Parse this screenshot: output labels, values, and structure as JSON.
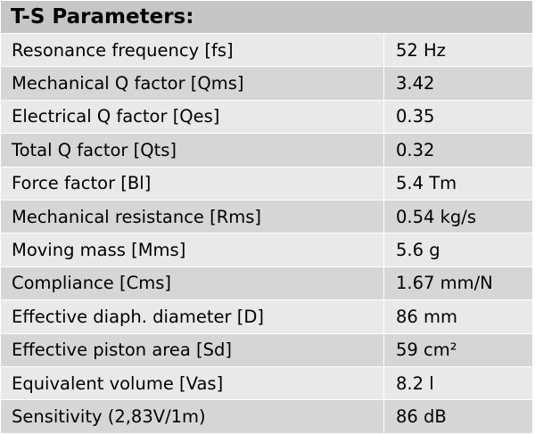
{
  "title": "T-S Parameters:",
  "rows": [
    {
      "label": "Resonance frequency [fs]",
      "value": "52 Hz"
    },
    {
      "label": "Mechanical Q factor [Qms]",
      "value": "3.42"
    },
    {
      "label": "Electrical Q factor [Qes]",
      "value": "0.35"
    },
    {
      "label": "Total Q factor [Qts]",
      "value": "0.32"
    },
    {
      "label": "Force factor [Bl]",
      "value": "5.4 Tm"
    },
    {
      "label": "Mechanical resistance [Rms]",
      "value": "0.54 kg/s"
    },
    {
      "label": "Moving mass [Mms]",
      "value": "5.6 g"
    },
    {
      "label": "Compliance [Cms]",
      "value": "1.67 mm/N"
    },
    {
      "label": "Effective diaph. diameter [D]",
      "value": "86 mm"
    },
    {
      "label": "Effective piston area [Sd]",
      "value": "59 cm²"
    },
    {
      "label": "Equivalent volume [Vas]",
      "value": "8.2 l"
    },
    {
      "label": "Sensitivity (2,83V/1m)",
      "value": "86 dB"
    }
  ]
}
